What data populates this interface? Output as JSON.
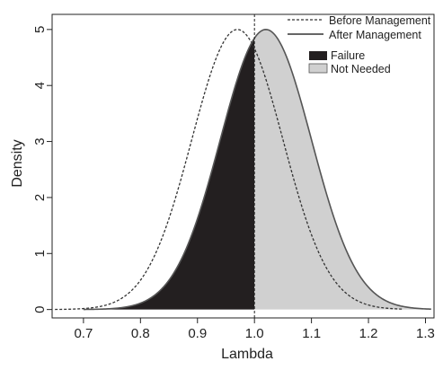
{
  "chart_data": {
    "type": "area",
    "title": "",
    "xlabel": "Lambda",
    "ylabel": "Density",
    "xlim": [
      0.645,
      1.315
    ],
    "ylim": [
      -0.15,
      5.27
    ],
    "x_ticks": [
      0.7,
      0.8,
      0.9,
      1.0,
      1.1,
      1.2,
      1.3
    ],
    "x_tick_labels": [
      "0.7",
      "0.8",
      "0.9",
      "1.0",
      "1.1",
      "1.2",
      "1.3"
    ],
    "y_ticks": [
      0,
      1,
      2,
      3,
      4,
      5
    ],
    "y_tick_labels": [
      "0",
      "1",
      "2",
      "3",
      "4",
      "5"
    ],
    "threshold": 1.0,
    "series": [
      {
        "name": "Before Management",
        "style": "dashed",
        "color": "#333333",
        "distribution": {
          "type": "normal",
          "mean": 0.97,
          "sd": 0.08,
          "peak": 5.0,
          "range": [
            0.65,
            1.26
          ]
        }
      },
      {
        "name": "After Management",
        "style": "solid",
        "color": "#555555",
        "distribution": {
          "type": "normal",
          "mean": 1.02,
          "sd": 0.08,
          "peak": 5.0,
          "range": [
            0.7,
            1.31
          ]
        }
      }
    ],
    "regions": [
      {
        "name": "Failure",
        "color": "#231f20",
        "under": "After Management",
        "from": 0.7,
        "to": 1.0
      },
      {
        "name": "Not Needed",
        "color": "#d0d0d0",
        "under": "After Management",
        "from": 1.0,
        "to": 1.31
      }
    ],
    "legend": {
      "position": "top-right",
      "lines": [
        "Before Management",
        "After Management"
      ],
      "fills": [
        "Failure",
        "Not Needed"
      ]
    },
    "grid": false
  }
}
